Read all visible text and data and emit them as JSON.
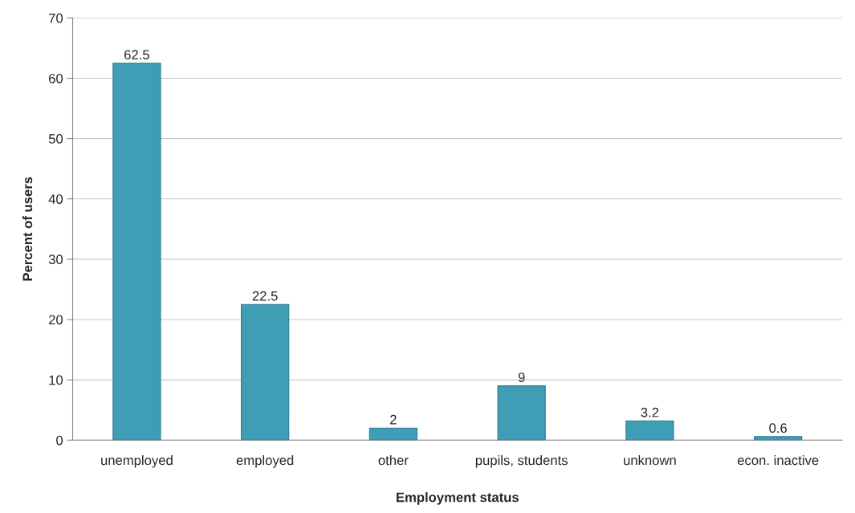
{
  "chart_data": {
    "type": "bar",
    "xlabel": "Employment status",
    "ylabel": "Percent of users",
    "categories": [
      "unemployed",
      "employed",
      "other",
      "pupils, students",
      "unknown",
      "econ. inactive"
    ],
    "values": [
      62.5,
      22.5,
      2,
      9,
      3.2,
      0.6
    ],
    "color": "#3f9db6",
    "ylim": [
      0,
      70
    ],
    "yticks": [
      0,
      10,
      20,
      30,
      40,
      50,
      60,
      70
    ],
    "grid": "y",
    "data_labels": true
  }
}
